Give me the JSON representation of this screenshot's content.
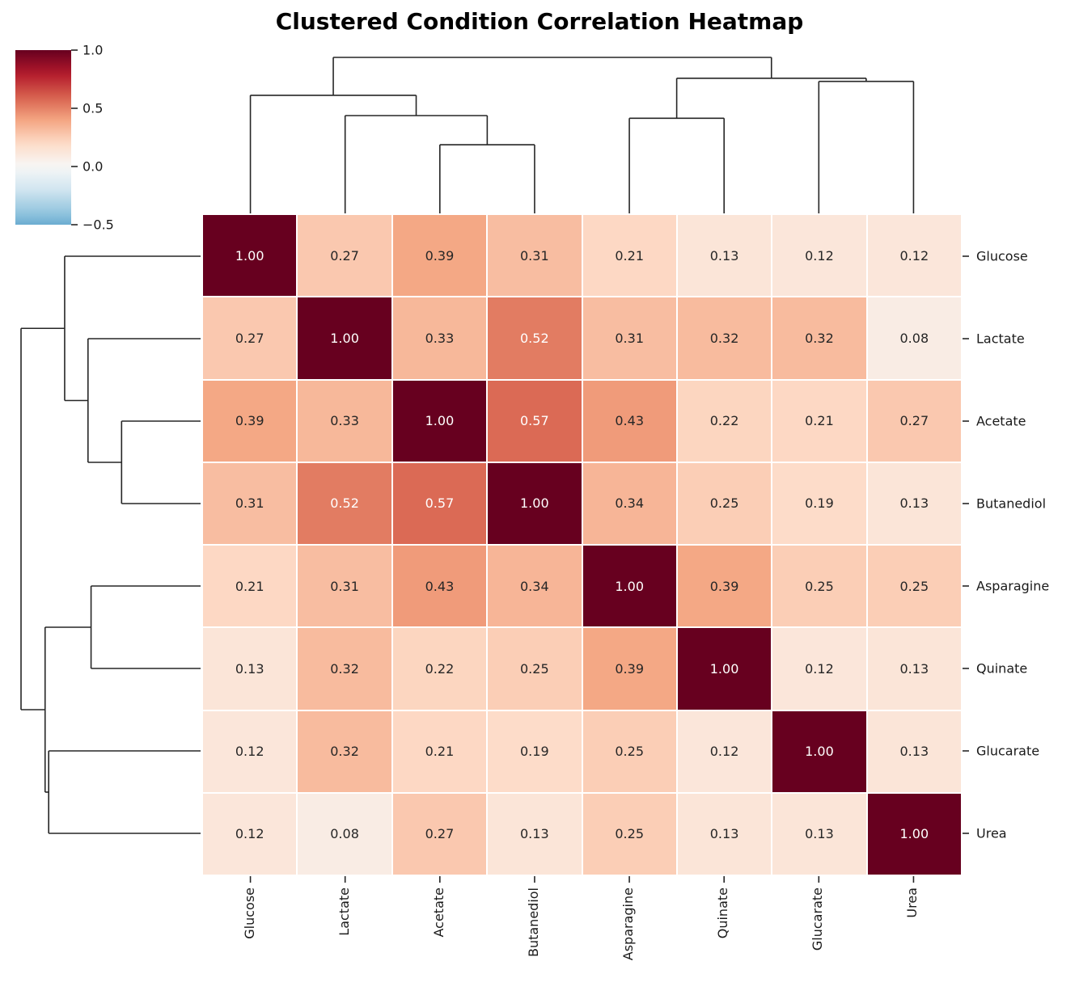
{
  "title_block": {
    "title": "Clustered Condition Correlation Heatmap"
  },
  "colors": {
    "background": "#ffffff",
    "dendrogram_line": "#262626",
    "tick_line": "#262626",
    "tick_label_color": "#1a1a1a",
    "annotation_dark": "#262626",
    "annotation_light": "#ffffff",
    "grid_line": "#ffffff",
    "rdbu_anchors": [
      "#67001f",
      "#b2182b",
      "#d6604d",
      "#f4a582",
      "#fddbc7",
      "#f7f7f7",
      "#d1e5f0",
      "#92c5de",
      "#4393c3",
      "#2166ac",
      "#053061"
    ]
  },
  "colorbar": {
    "orientation": "vertical",
    "position": "upper-left",
    "colormap": "RdBu_r",
    "norm_min": -1.0,
    "norm_max": 1.0,
    "display_max": 1.0,
    "display_min": -0.5,
    "tick_labels": [
      "1.0",
      "0.5",
      "0.0",
      "−0.5"
    ],
    "tick_values": [
      1.0,
      0.5,
      0.0,
      -0.5
    ]
  },
  "chart_data": {
    "type": "heatmap",
    "title": "Clustered Condition Correlation Heatmap",
    "categories": [
      "Glucose",
      "Lactate",
      "Acetate",
      "Butanediol",
      "Asparagine",
      "Quinate",
      "Glucarate",
      "Urea"
    ],
    "row_labels_side": "right",
    "col_labels_side": "bottom",
    "annotation_decimals": 2,
    "matrix": [
      [
        1.0,
        0.27,
        0.39,
        0.31,
        0.21,
        0.13,
        0.12,
        0.12
      ],
      [
        0.27,
        1.0,
        0.33,
        0.52,
        0.31,
        0.32,
        0.32,
        0.08
      ],
      [
        0.39,
        0.33,
        1.0,
        0.57,
        0.43,
        0.22,
        0.21,
        0.27
      ],
      [
        0.31,
        0.52,
        0.57,
        1.0,
        0.34,
        0.25,
        0.19,
        0.13
      ],
      [
        0.21,
        0.31,
        0.43,
        0.34,
        1.0,
        0.39,
        0.25,
        0.25
      ],
      [
        0.13,
        0.32,
        0.22,
        0.25,
        0.39,
        1.0,
        0.12,
        0.13
      ],
      [
        0.12,
        0.32,
        0.21,
        0.19,
        0.25,
        0.12,
        1.0,
        0.13
      ],
      [
        0.12,
        0.08,
        0.27,
        0.13,
        0.25,
        0.13,
        0.13,
        1.0
      ]
    ],
    "dendrogram_tree": {
      "h": 1.0,
      "children": [
        {
          "h": 0.757,
          "children": [
            {
              "leaf": "Glucose"
            },
            {
              "h": 0.627,
              "children": [
                {
                  "leaf": "Lactate"
                },
                {
                  "h": 0.44,
                  "children": [
                    {
                      "leaf": "Acetate"
                    },
                    {
                      "leaf": "Butanediol"
                    }
                  ]
                }
              ]
            }
          ]
        },
        {
          "h": 0.866,
          "children": [
            {
              "h": 0.61,
              "children": [
                {
                  "leaf": "Asparagine"
                },
                {
                  "leaf": "Quinate"
                }
              ]
            },
            {
              "h": 0.846,
              "children": [
                {
                  "leaf": "Glucarate"
                },
                {
                  "leaf": "Urea"
                }
              ]
            }
          ]
        }
      ]
    }
  }
}
